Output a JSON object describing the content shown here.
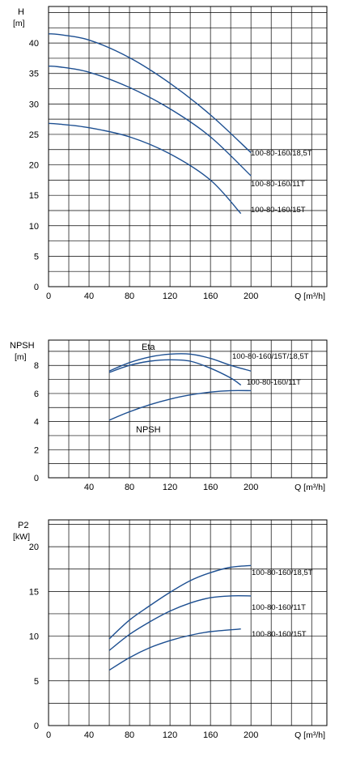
{
  "chart_data": [
    {
      "type": "line",
      "ylabel_top": "H",
      "ylabel_unit": "[m]",
      "xlabel": "Q [m³/h]",
      "xlim": [
        0,
        275
      ],
      "ylim": [
        0,
        46
      ],
      "xticks": [
        0,
        40,
        80,
        120,
        160,
        200
      ],
      "xtick_labels": [
        "0",
        "40",
        "80",
        "120",
        "160",
        "200"
      ],
      "yticks": [
        0,
        5,
        10,
        15,
        20,
        25,
        30,
        35,
        40
      ],
      "yminor": 2.5,
      "grid": true,
      "series": [
        {
          "name": "100-80-160/18,5T",
          "x": [
            0,
            10,
            40,
            80,
            120,
            160,
            200
          ],
          "y": [
            41.5,
            41.4,
            40.5,
            37.6,
            33.4,
            28.2,
            22.0
          ]
        },
        {
          "name": "100-80-160/11T",
          "x": [
            0,
            10,
            40,
            80,
            120,
            160,
            200
          ],
          "y": [
            36.2,
            36.1,
            35.2,
            32.7,
            29.2,
            24.6,
            18.2
          ]
        },
        {
          "name": "100-80-160/15T",
          "x": [
            0,
            10,
            40,
            80,
            120,
            160,
            190
          ],
          "y": [
            26.8,
            26.7,
            26.1,
            24.6,
            21.8,
            17.5,
            12.0
          ]
        }
      ]
    },
    {
      "type": "line",
      "ylabel_top": "NPSH",
      "ylabel_unit": "[m]",
      "xlabel": "Q [m³/h]",
      "xlim": [
        0,
        275
      ],
      "ylim": [
        0,
        9.8
      ],
      "xticks": [
        40,
        80,
        120,
        160,
        200
      ],
      "xtick_labels": [
        "40",
        "80",
        "120",
        "160",
        "200"
      ],
      "yticks": [
        0,
        2,
        4,
        6,
        8
      ],
      "yminor": 1,
      "grid": true,
      "curve_labels": {
        "eta": "Eta",
        "npsh": "NPSH"
      },
      "series": [
        {
          "name": "100-80-160/15T/18,5T",
          "x": [
            60,
            80,
            100,
            120,
            140,
            160,
            180,
            200
          ],
          "y": [
            7.6,
            8.2,
            8.6,
            8.8,
            8.8,
            8.5,
            8.0,
            7.6
          ]
        },
        {
          "name": "100-80-160/11T",
          "x": [
            60,
            80,
            100,
            120,
            140,
            160,
            180,
            190
          ],
          "y": [
            7.5,
            8.0,
            8.3,
            8.4,
            8.3,
            7.8,
            7.1,
            6.6
          ]
        },
        {
          "name": "NPSH",
          "x": [
            60,
            80,
            100,
            120,
            140,
            160,
            180,
            200
          ],
          "y": [
            4.1,
            4.7,
            5.2,
            5.6,
            5.9,
            6.1,
            6.2,
            6.2
          ]
        }
      ]
    },
    {
      "type": "line",
      "ylabel_top": "P2",
      "ylabel_unit": "[kW]",
      "xlabel": "Q [m³/h]",
      "xlim": [
        0,
        275
      ],
      "ylim": [
        0,
        23
      ],
      "xticks": [
        0,
        40,
        80,
        120,
        160,
        200
      ],
      "xtick_labels": [
        "0",
        "40",
        "80",
        "120",
        "160",
        "200"
      ],
      "yticks": [
        0,
        5,
        10,
        15,
        20
      ],
      "yminor": 2.5,
      "grid": true,
      "series": [
        {
          "name": "100-80-160/18,5T",
          "x": [
            60,
            80,
            100,
            120,
            140,
            160,
            180,
            200
          ],
          "y": [
            9.7,
            11.8,
            13.4,
            14.9,
            16.2,
            17.1,
            17.7,
            17.9
          ]
        },
        {
          "name": "100-80-160/11T",
          "x": [
            60,
            80,
            100,
            120,
            140,
            160,
            180,
            200
          ],
          "y": [
            8.4,
            10.2,
            11.6,
            12.8,
            13.7,
            14.3,
            14.5,
            14.5
          ]
        },
        {
          "name": "100-80-160/15T",
          "x": [
            60,
            80,
            100,
            120,
            140,
            160,
            190
          ],
          "y": [
            6.2,
            7.6,
            8.7,
            9.5,
            10.1,
            10.5,
            10.8
          ]
        }
      ]
    }
  ]
}
